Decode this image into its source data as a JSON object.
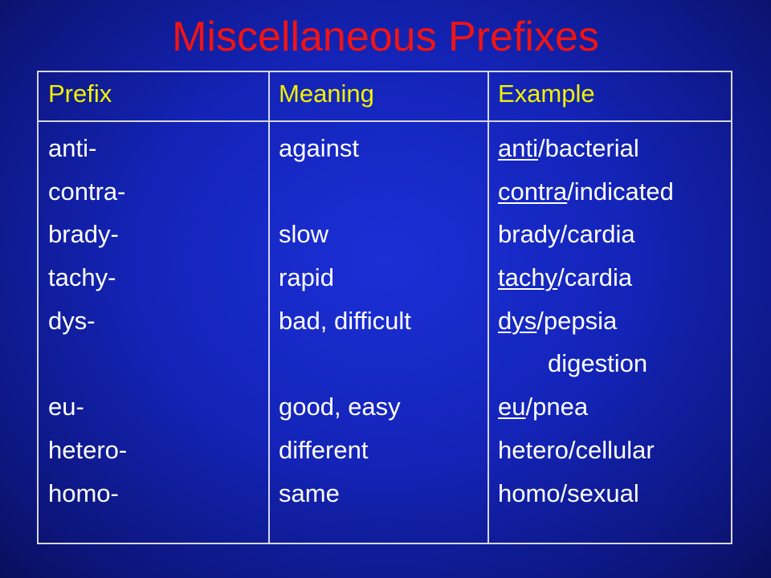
{
  "slide": {
    "title": "Miscellaneous Prefixes"
  },
  "table": {
    "headers": [
      "Prefix",
      "Meaning",
      "Example"
    ],
    "prefixes": [
      "anti-",
      "contra-",
      "brady-",
      "tachy-",
      "dys-",
      "",
      "eu-",
      "hetero-",
      "homo-"
    ],
    "meanings": [
      "against",
      "",
      "slow",
      "rapid",
      "bad, difficult",
      "",
      "good, easy",
      "different",
      "same"
    ],
    "examples": [
      {
        "underlined": "anti",
        "rest": "/bacterial"
      },
      {
        "underlined": "contra",
        "rest": "/indicated"
      },
      {
        "underlined": "",
        "rest": "brady/cardia"
      },
      {
        "underlined": "tachy",
        "rest": "/cardia"
      },
      {
        "underlined": "dys",
        "rest": "/pepsia"
      },
      {
        "underlined": "",
        "rest": "digestion"
      },
      {
        "underlined": "eu",
        "rest": "/pnea"
      },
      {
        "underlined": "",
        "rest": "hetero/cellular"
      },
      {
        "underlined": "",
        "rest": "homo/sexual"
      }
    ]
  },
  "colors": {
    "background": "#1424b8",
    "title": "#f01414",
    "header_text": "#f2f200",
    "body_text": "#ffffff",
    "border": "#d7d7e6"
  }
}
